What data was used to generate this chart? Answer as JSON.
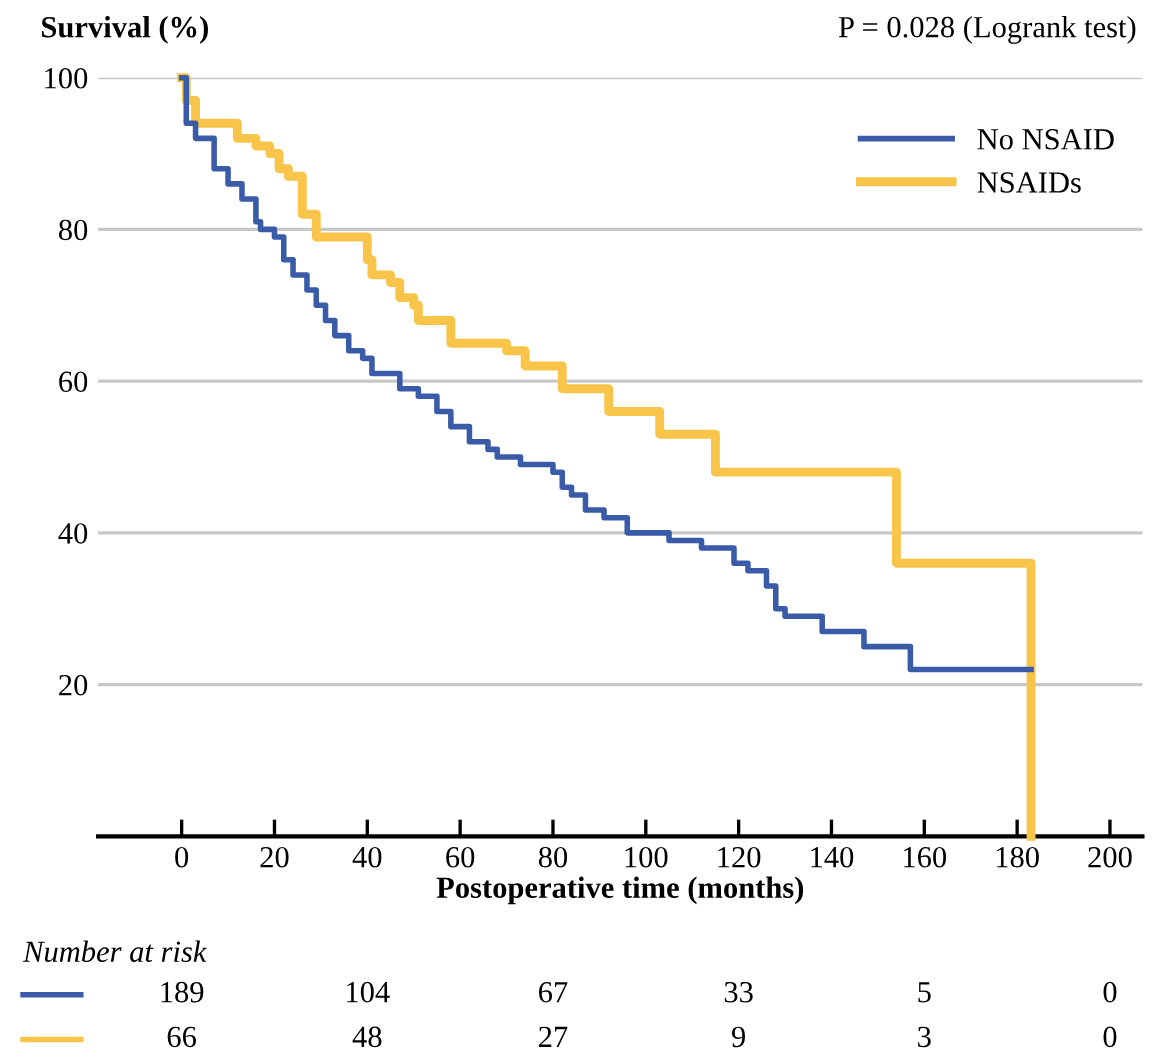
{
  "chart_data": {
    "type": "step",
    "ylabel": "Survival (%)",
    "xlabel": "Postoperative time (months)",
    "annotations": [
      "P = 0.028 (Logrank test)",
      "Number at risk",
      "189",
      "104",
      "67",
      "33",
      "5",
      "0",
      "66",
      "48",
      "27",
      "9",
      "3",
      "0"
    ],
    "series": [
      {
        "name": "No NSAID",
        "color": "#3a5ba8",
        "x": [
          0,
          1,
          3,
          7,
          10,
          13,
          16,
          17,
          20,
          22,
          24,
          27,
          29,
          31,
          33,
          36,
          39,
          41,
          47,
          51,
          55,
          58,
          62,
          66,
          68,
          73,
          80,
          82,
          84,
          87,
          91,
          96,
          105,
          112,
          119,
          122,
          126,
          128,
          130,
          138,
          147,
          157,
          183
        ],
        "values": [
          100,
          94,
          92,
          88,
          86,
          84,
          81,
          80,
          79,
          76,
          74,
          72,
          70,
          68,
          66,
          64,
          63,
          61,
          59,
          58,
          56,
          54,
          52,
          51,
          50,
          49,
          48,
          46,
          45,
          43,
          42,
          40,
          39,
          38,
          36,
          35,
          33,
          30,
          29,
          27,
          25,
          22,
          22
        ]
      },
      {
        "name": "NSAIDs",
        "color": "#f8c54a",
        "x": [
          0,
          1,
          3,
          12,
          16,
          19,
          21,
          23,
          26,
          29,
          40,
          41,
          45,
          47,
          50,
          51,
          58,
          70,
          74,
          82,
          92,
          103,
          115,
          154,
          183
        ],
        "values": [
          100,
          97,
          94,
          92,
          91,
          90,
          88,
          87,
          82,
          79,
          76,
          74,
          73,
          71,
          70,
          68,
          65,
          64,
          62,
          59,
          56,
          53,
          48,
          36,
          0
        ]
      }
    ],
    "xlim": [
      -18,
      207
    ],
    "xticks": [
      0,
      20,
      40,
      60,
      80,
      100,
      120,
      140,
      160,
      180,
      200
    ],
    "ylim": [
      0,
      100
    ],
    "yticks": [
      20,
      40,
      60,
      80,
      100
    ],
    "grid": "y",
    "legend": "top right"
  }
}
